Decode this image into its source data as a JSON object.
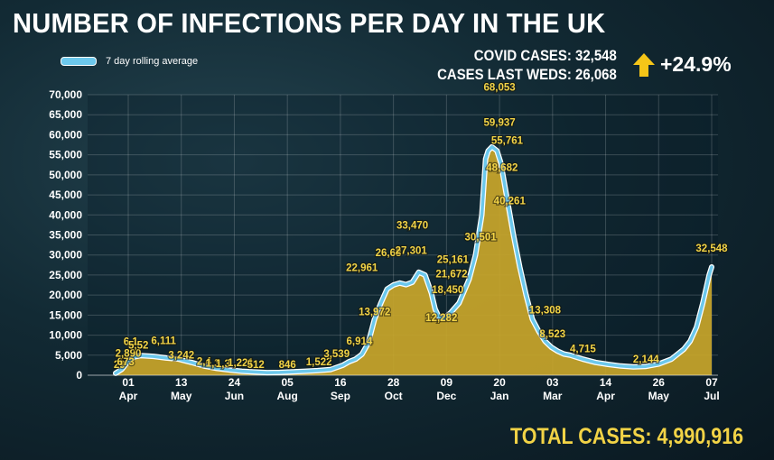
{
  "title": "NUMBER OF INFECTIONS PER DAY IN THE UK",
  "legend": {
    "label": "7 day rolling average"
  },
  "stats": {
    "covid_cases": "COVID CASES: 32,548",
    "last_weds": "CASES LAST WEDS: 26,068",
    "change": "+24.9%"
  },
  "total": "TOTAL CASES: 4,990,916",
  "colors": {
    "area": "#c9a62a",
    "line": "#6cc8ec",
    "label": "#f2d346",
    "text": "#ffffff",
    "arrow": "#f5c518"
  },
  "chart_data": {
    "type": "area",
    "title": "NUMBER OF INFECTIONS PER DAY IN THE UK",
    "ylim": [
      0,
      70000
    ],
    "yticks": [
      "0",
      "5,000",
      "10,000",
      "15,000",
      "20,000",
      "25,000",
      "30,000",
      "35,000",
      "40,000",
      "45,000",
      "50,000",
      "55,000",
      "60,000",
      "65,000",
      "70,000"
    ],
    "xticks": [
      {
        "day": 0,
        "top": "01",
        "bottom": "Apr"
      },
      {
        "day": 42,
        "top": "13",
        "bottom": "May"
      },
      {
        "day": 84,
        "top": "24",
        "bottom": "Jun"
      },
      {
        "day": 126,
        "top": "05",
        "bottom": "Aug"
      },
      {
        "day": 168,
        "top": "16",
        "bottom": "Sep"
      },
      {
        "day": 210,
        "top": "28",
        "bottom": "Oct"
      },
      {
        "day": 252,
        "top": "09",
        "bottom": "Dec"
      },
      {
        "day": 294,
        "top": "20",
        "bottom": "Jan"
      },
      {
        "day": 336,
        "top": "03",
        "bottom": "Mar"
      },
      {
        "day": 378,
        "top": "14",
        "bottom": "Apr"
      },
      {
        "day": 420,
        "top": "26",
        "bottom": "May"
      },
      {
        "day": 462,
        "top": "07",
        "bottom": "Jul"
      }
    ],
    "series": [
      {
        "name": "7 day rolling average",
        "points": [
          [
            -10,
            500
          ],
          [
            -5,
            1500
          ],
          [
            0,
            3500
          ],
          [
            5,
            4600
          ],
          [
            10,
            4900
          ],
          [
            20,
            4700
          ],
          [
            30,
            4300
          ],
          [
            40,
            4000
          ],
          [
            50,
            3200
          ],
          [
            60,
            2300
          ],
          [
            70,
            1700
          ],
          [
            80,
            1300
          ],
          [
            90,
            1000
          ],
          [
            100,
            800
          ],
          [
            110,
            650
          ],
          [
            120,
            700
          ],
          [
            130,
            850
          ],
          [
            140,
            1000
          ],
          [
            150,
            1150
          ],
          [
            160,
            1400
          ],
          [
            170,
            2500
          ],
          [
            175,
            3400
          ],
          [
            180,
            4000
          ],
          [
            185,
            5200
          ],
          [
            190,
            8000
          ],
          [
            195,
            14000
          ],
          [
            200,
            18000
          ],
          [
            205,
            21500
          ],
          [
            210,
            22500
          ],
          [
            215,
            23000
          ],
          [
            220,
            22600
          ],
          [
            225,
            23200
          ],
          [
            230,
            25700
          ],
          [
            235,
            25000
          ],
          [
            240,
            20500
          ],
          [
            243,
            16500
          ],
          [
            246,
            14500
          ],
          [
            250,
            14200
          ],
          [
            255,
            15500
          ],
          [
            262,
            18000
          ],
          [
            270,
            24000
          ],
          [
            275,
            30000
          ],
          [
            280,
            40000
          ],
          [
            283,
            54000
          ],
          [
            285,
            56000
          ],
          [
            288,
            57000
          ],
          [
            292,
            56000
          ],
          [
            295,
            53000
          ],
          [
            300,
            44000
          ],
          [
            305,
            35000
          ],
          [
            310,
            27000
          ],
          [
            315,
            20000
          ],
          [
            320,
            14000
          ],
          [
            325,
            11000
          ],
          [
            330,
            8500
          ],
          [
            335,
            7000
          ],
          [
            340,
            6000
          ],
          [
            345,
            5300
          ],
          [
            350,
            5000
          ],
          [
            355,
            4500
          ],
          [
            360,
            4000
          ],
          [
            370,
            3200
          ],
          [
            380,
            2700
          ],
          [
            390,
            2300
          ],
          [
            400,
            2100
          ],
          [
            410,
            2200
          ],
          [
            420,
            2800
          ],
          [
            430,
            4000
          ],
          [
            440,
            6500
          ],
          [
            445,
            8500
          ],
          [
            450,
            12000
          ],
          [
            455,
            18000
          ],
          [
            460,
            25000
          ],
          [
            462,
            27000
          ]
        ]
      }
    ],
    "annotations": [
      {
        "day": -7,
        "value": 1800,
        "label": "29"
      },
      {
        "day": -2,
        "value": 2500,
        "label": "673"
      },
      {
        "day": 0,
        "value": 4600,
        "label": "2,890"
      },
      {
        "day": 2,
        "value": 7500,
        "label": "6,1"
      },
      {
        "day": 8,
        "value": 6600,
        "label": "5,52"
      },
      {
        "day": 28,
        "value": 7800,
        "label": "6,111"
      },
      {
        "day": 42,
        "value": 4200,
        "label": "3,242"
      },
      {
        "day": 60,
        "value": 2600,
        "label": "2,4"
      },
      {
        "day": 67,
        "value": 2100,
        "label": "1,3"
      },
      {
        "day": 75,
        "value": 2000,
        "label": "1,3"
      },
      {
        "day": 89,
        "value": 2200,
        "label": "1,221"
      },
      {
        "day": 101,
        "value": 1800,
        "label": "512"
      },
      {
        "day": 126,
        "value": 1800,
        "label": "846"
      },
      {
        "day": 151,
        "value": 2500,
        "label": "1,522"
      },
      {
        "day": 165,
        "value": 4500,
        "label": "3,539"
      },
      {
        "day": 183,
        "value": 7600,
        "label": "6,914"
      },
      {
        "day": 185,
        "value": 26000,
        "label": "22,961"
      },
      {
        "day": 195,
        "value": 15000,
        "label": "13,972"
      },
      {
        "day": 206,
        "value": 29700,
        "label": "26,68"
      },
      {
        "day": 224,
        "value": 30300,
        "label": "27,301"
      },
      {
        "day": 225,
        "value": 36600,
        "label": "33,470"
      },
      {
        "day": 257,
        "value": 28000,
        "label": "25,161"
      },
      {
        "day": 256,
        "value": 24400,
        "label": "21,672"
      },
      {
        "day": 253,
        "value": 20500,
        "label": "18,450"
      },
      {
        "day": 248,
        "value": 13500,
        "label": "12,282"
      },
      {
        "day": 279,
        "value": 33700,
        "label": "30,501"
      },
      {
        "day": 294,
        "value": 71000,
        "label": "68,053"
      },
      {
        "day": 294,
        "value": 62200,
        "label": "59,937"
      },
      {
        "day": 300,
        "value": 57700,
        "label": "55,761"
      },
      {
        "day": 296,
        "value": 51000,
        "label": "48,682"
      },
      {
        "day": 302,
        "value": 42600,
        "label": "40,261"
      },
      {
        "day": 330,
        "value": 15400,
        "label": "13,308"
      },
      {
        "day": 336,
        "value": 9500,
        "label": "8,523"
      },
      {
        "day": 360,
        "value": 5700,
        "label": "4,715"
      },
      {
        "day": 410,
        "value": 3200,
        "label": "2,144"
      },
      {
        "day": 462,
        "value": 30800,
        "label": "32,548"
      }
    ]
  }
}
